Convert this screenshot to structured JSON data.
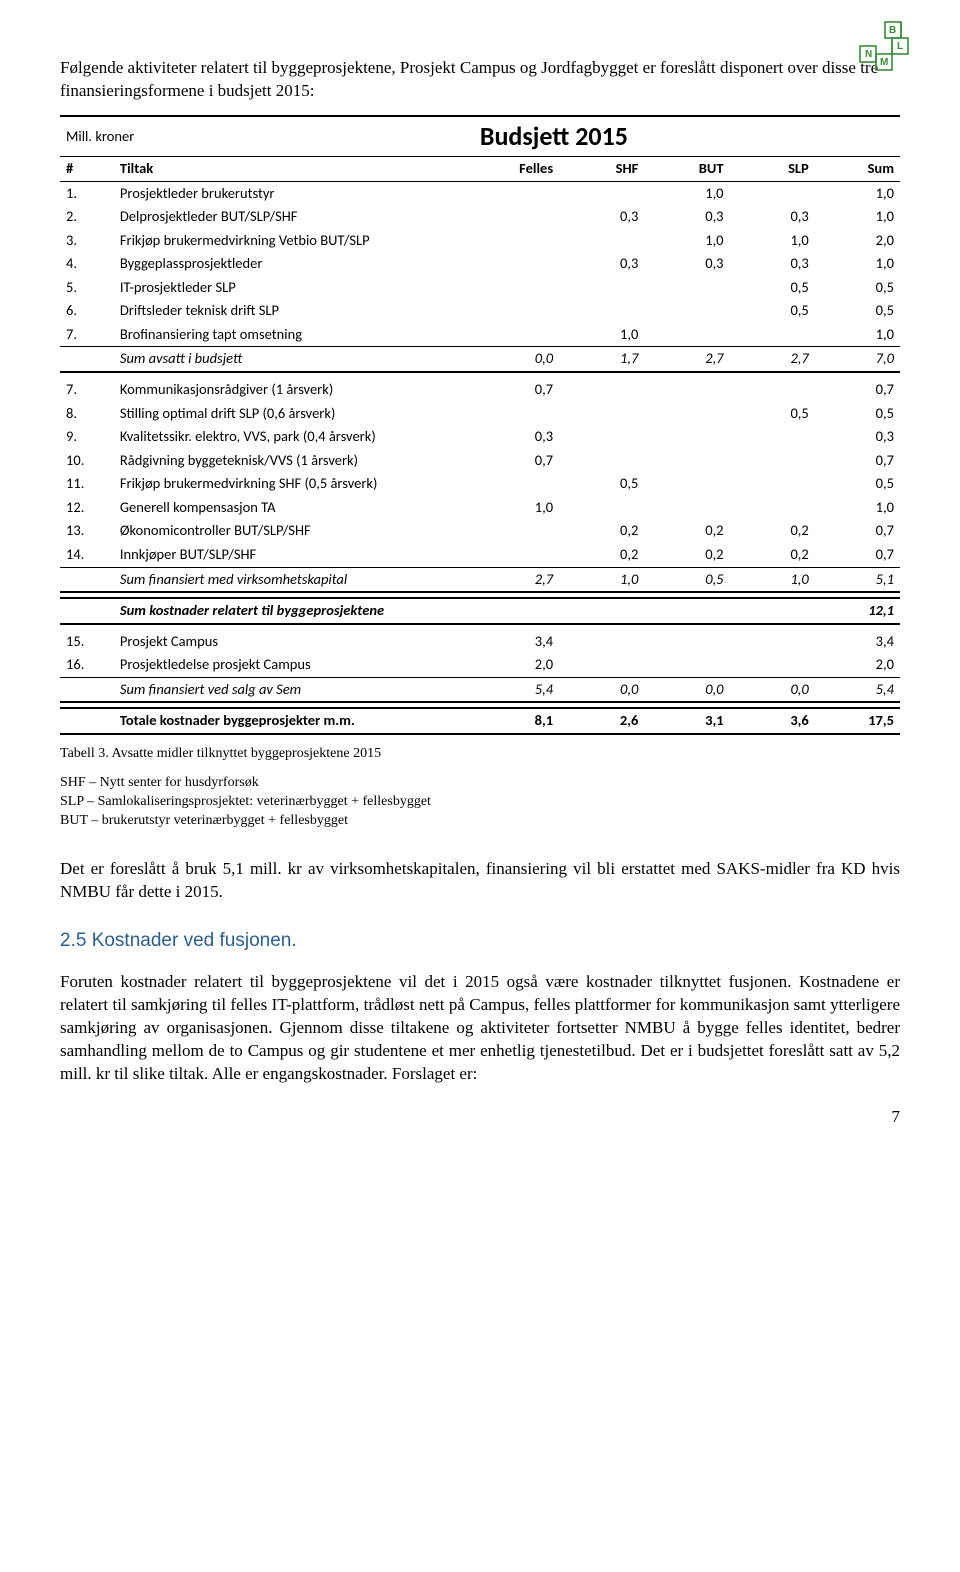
{
  "logo": {
    "letters": [
      "B",
      "L",
      "M",
      "N"
    ],
    "stroke": "#3a8a3a"
  },
  "intro": "Følgende aktiviteter relatert til byggeprosjektene, Prosjekt Campus og Jordfagbygget er foreslått disponert over disse tre finansieringsformene i budsjett 2015:",
  "table": {
    "corner": "Mill. kroner",
    "title": "Budsjett 2015",
    "header": {
      "num": "#",
      "tiltak": "Tiltak",
      "c1": "Felles",
      "c2": "SHF",
      "c3": "BUT",
      "c4": "SLP",
      "c5": "Sum"
    },
    "block1": [
      {
        "n": "1.",
        "t": "Prosjektleder brukerutstyr",
        "c1": "",
        "c2": "",
        "c3": "1,0",
        "c4": "",
        "c5": "1,0"
      },
      {
        "n": "2.",
        "t": "Delprosjektleder BUT/SLP/SHF",
        "c1": "",
        "c2": "0,3",
        "c3": "0,3",
        "c4": "0,3",
        "c5": "1,0"
      },
      {
        "n": "3.",
        "t": "Frikjøp brukermedvirkning Vetbio BUT/SLP",
        "c1": "",
        "c2": "",
        "c3": "1,0",
        "c4": "1,0",
        "c5": "2,0"
      },
      {
        "n": "4.",
        "t": "Byggeplassprosjektleder",
        "c1": "",
        "c2": "0,3",
        "c3": "0,3",
        "c4": "0,3",
        "c5": "1,0"
      },
      {
        "n": "5.",
        "t": "IT-prosjektleder SLP",
        "c1": "",
        "c2": "",
        "c3": "",
        "c4": "0,5",
        "c5": "0,5"
      },
      {
        "n": "6.",
        "t": "Driftsleder teknisk drift SLP",
        "c1": "",
        "c2": "",
        "c3": "",
        "c4": "0,5",
        "c5": "0,5"
      },
      {
        "n": "7.",
        "t": "Brofinansiering tapt omsetning",
        "c1": "",
        "c2": "1,0",
        "c3": "",
        "c4": "",
        "c5": "1,0"
      }
    ],
    "sum1": {
      "t": "Sum avsatt i budsjett",
      "c1": "0,0",
      "c2": "1,7",
      "c3": "2,7",
      "c4": "2,7",
      "c5": "7,0"
    },
    "block2": [
      {
        "n": "7.",
        "t": "Kommunikasjonsrådgiver (1 årsverk)",
        "c1": "0,7",
        "c2": "",
        "c3": "",
        "c4": "",
        "c5": "0,7"
      },
      {
        "n": "8.",
        "t": "Stilling optimal drift SLP (0,6 årsverk)",
        "c1": "",
        "c2": "",
        "c3": "",
        "c4": "0,5",
        "c5": "0,5"
      },
      {
        "n": "9.",
        "t": "Kvalitetssikr. elektro, VVS, park (0,4 årsverk)",
        "c1": "0,3",
        "c2": "",
        "c3": "",
        "c4": "",
        "c5": "0,3"
      },
      {
        "n": "10.",
        "t": "Rådgivning byggeteknisk/VVS (1 årsverk)",
        "c1": "0,7",
        "c2": "",
        "c3": "",
        "c4": "",
        "c5": "0,7"
      },
      {
        "n": "11.",
        "t": "Frikjøp brukermedvirkning SHF (0,5 årsverk)",
        "c1": "",
        "c2": "0,5",
        "c3": "",
        "c4": "",
        "c5": "0,5"
      },
      {
        "n": "12.",
        "t": "Generell kompensasjon TA",
        "c1": "1,0",
        "c2": "",
        "c3": "",
        "c4": "",
        "c5": "1,0"
      },
      {
        "n": "13.",
        "t": "Økonomicontroller BUT/SLP/SHF",
        "c1": "",
        "c2": "0,2",
        "c3": "0,2",
        "c4": "0,2",
        "c5": "0,7"
      },
      {
        "n": "14.",
        "t": "Innkjøper BUT/SLP/SHF",
        "c1": "",
        "c2": "0,2",
        "c3": "0,2",
        "c4": "0,2",
        "c5": "0,7"
      }
    ],
    "sum2": {
      "t": "Sum finansiert med virksomhetskapital",
      "c1": "2,7",
      "c2": "1,0",
      "c3": "0,5",
      "c4": "1,0",
      "c5": "5,1"
    },
    "sum3": {
      "t": "Sum kostnader relatert til byggeprosjektene",
      "c5": "12,1"
    },
    "block3": [
      {
        "n": "15.",
        "t": "Prosjekt Campus",
        "c1": "3,4",
        "c2": "",
        "c3": "",
        "c4": "",
        "c5": "3,4"
      },
      {
        "n": "16.",
        "t": "Prosjektledelse prosjekt Campus",
        "c1": "2,0",
        "c2": "",
        "c3": "",
        "c4": "",
        "c5": "2,0"
      }
    ],
    "sum4": {
      "t": "Sum finansiert ved salg av Sem",
      "c1": "5,4",
      "c2": "0,0",
      "c3": "0,0",
      "c4": "0,0",
      "c5": "5,4"
    },
    "total": {
      "t": "Totale kostnader byggeprosjekter m.m.",
      "c1": "8,1",
      "c2": "2,6",
      "c3": "3,1",
      "c4": "3,6",
      "c5": "17,5"
    }
  },
  "caption": "Tabell 3. Avsatte midler tilknyttet byggeprosjektene 2015",
  "abbr1": "SHF – Nytt senter for husdyrforsøk",
  "abbr2": "SLP – Samlokaliseringsprosjektet: veterinærbygget + fellesbygget",
  "abbr3": "BUT – brukerutstyr veterinærbygget + fellesbygget",
  "para1": "Det er foreslått å bruk 5,1 mill. kr av virksomhetskapitalen, finansiering vil bli erstattet med SAKS-midler fra KD hvis NMBU får dette i 2015.",
  "section_title": "2.5 Kostnader ved fusjonen.",
  "para2": "Foruten kostnader relatert til byggeprosjektene vil det i 2015 også være kostnader tilknyttet fusjonen. Kostnadene er relatert til samkjøring til felles IT-plattform, trådløst nett på Campus, felles plattformer for kommunikasjon samt ytterligere samkjøring av organisasjonen. Gjennom disse tiltakene og aktiviteter fortsetter NMBU å bygge felles identitet, bedrer samhandling mellom de to Campus og gir studentene et mer enhetlig tjenestetilbud. Det er i budsjettet foreslått satt av 5,2 mill. kr til slike tiltak. Alle er engangskostnader. Forslaget er:",
  "pagenum": "7"
}
